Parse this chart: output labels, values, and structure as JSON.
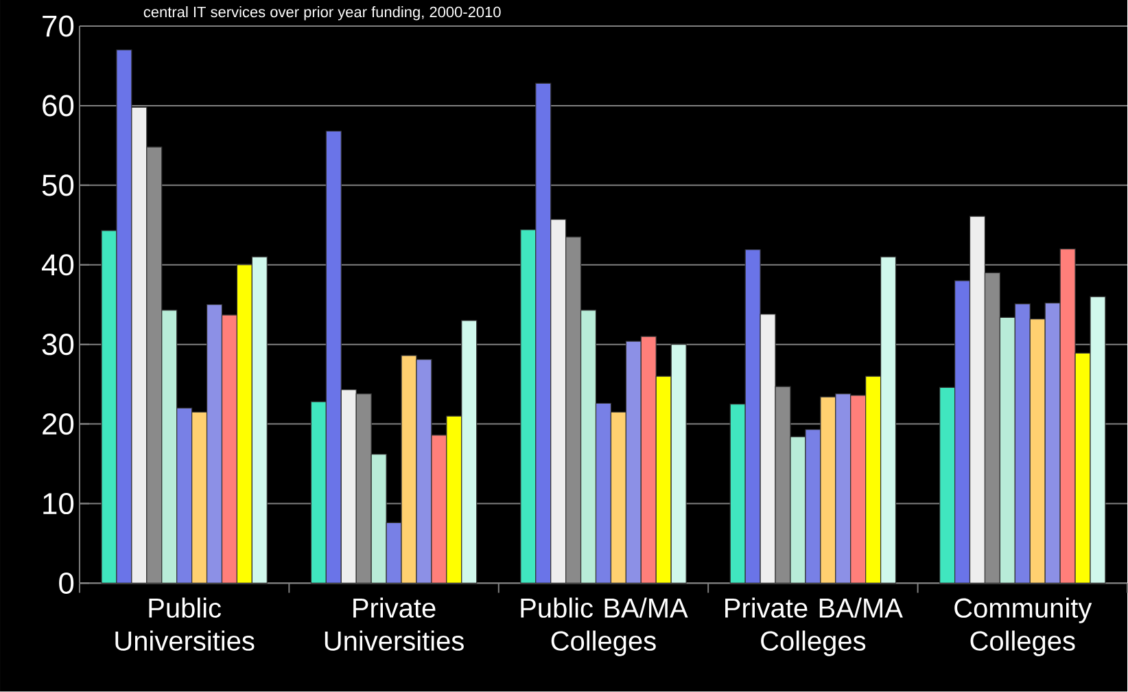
{
  "chart_data": {
    "type": "bar",
    "title": "central IT services over prior year funding, 2000-2010",
    "categories": [
      "Public Universities",
      "Private Universities",
      "Public BA/MA Colleges",
      "Private BA/MA Colleges",
      "Community Colleges"
    ],
    "series": [
      {
        "color": "#40e6bf",
        "values": [
          44.3,
          22.8,
          44.4,
          22.5,
          24.6
        ]
      },
      {
        "color": "#6a74e8",
        "values": [
          67,
          56.8,
          62.8,
          41.9,
          38
        ]
      },
      {
        "color": "#eeeeee",
        "values": [
          59.8,
          24.3,
          45.7,
          33.8,
          46.1
        ]
      },
      {
        "color": "#8a8a8a",
        "values": [
          54.8,
          23.8,
          43.5,
          24.7,
          39
        ]
      },
      {
        "color": "#b8ecd8",
        "values": [
          34.3,
          16.2,
          34.3,
          18.4,
          33.4
        ]
      },
      {
        "color": "#7880e6",
        "values": [
          22,
          7.6,
          22.6,
          19.3,
          35.1
        ]
      },
      {
        "color": "#ffd070",
        "values": [
          21.5,
          28.6,
          21.5,
          23.4,
          33.2
        ]
      },
      {
        "color": "#8c90e6",
        "values": [
          35,
          28.1,
          30.4,
          23.8,
          35.2
        ]
      },
      {
        "color": "#ff7f7a",
        "values": [
          33.7,
          18.6,
          31,
          23.6,
          42
        ]
      },
      {
        "color": "#ffff00",
        "values": [
          40,
          21,
          26,
          26,
          28.9
        ]
      },
      {
        "color": "#d0f8ec",
        "values": [
          41,
          33,
          30,
          41,
          36
        ]
      }
    ],
    "ylim": [
      0,
      70
    ],
    "yticks": [
      0,
      10,
      20,
      30,
      40,
      50,
      60,
      70
    ],
    "grid": "y"
  }
}
